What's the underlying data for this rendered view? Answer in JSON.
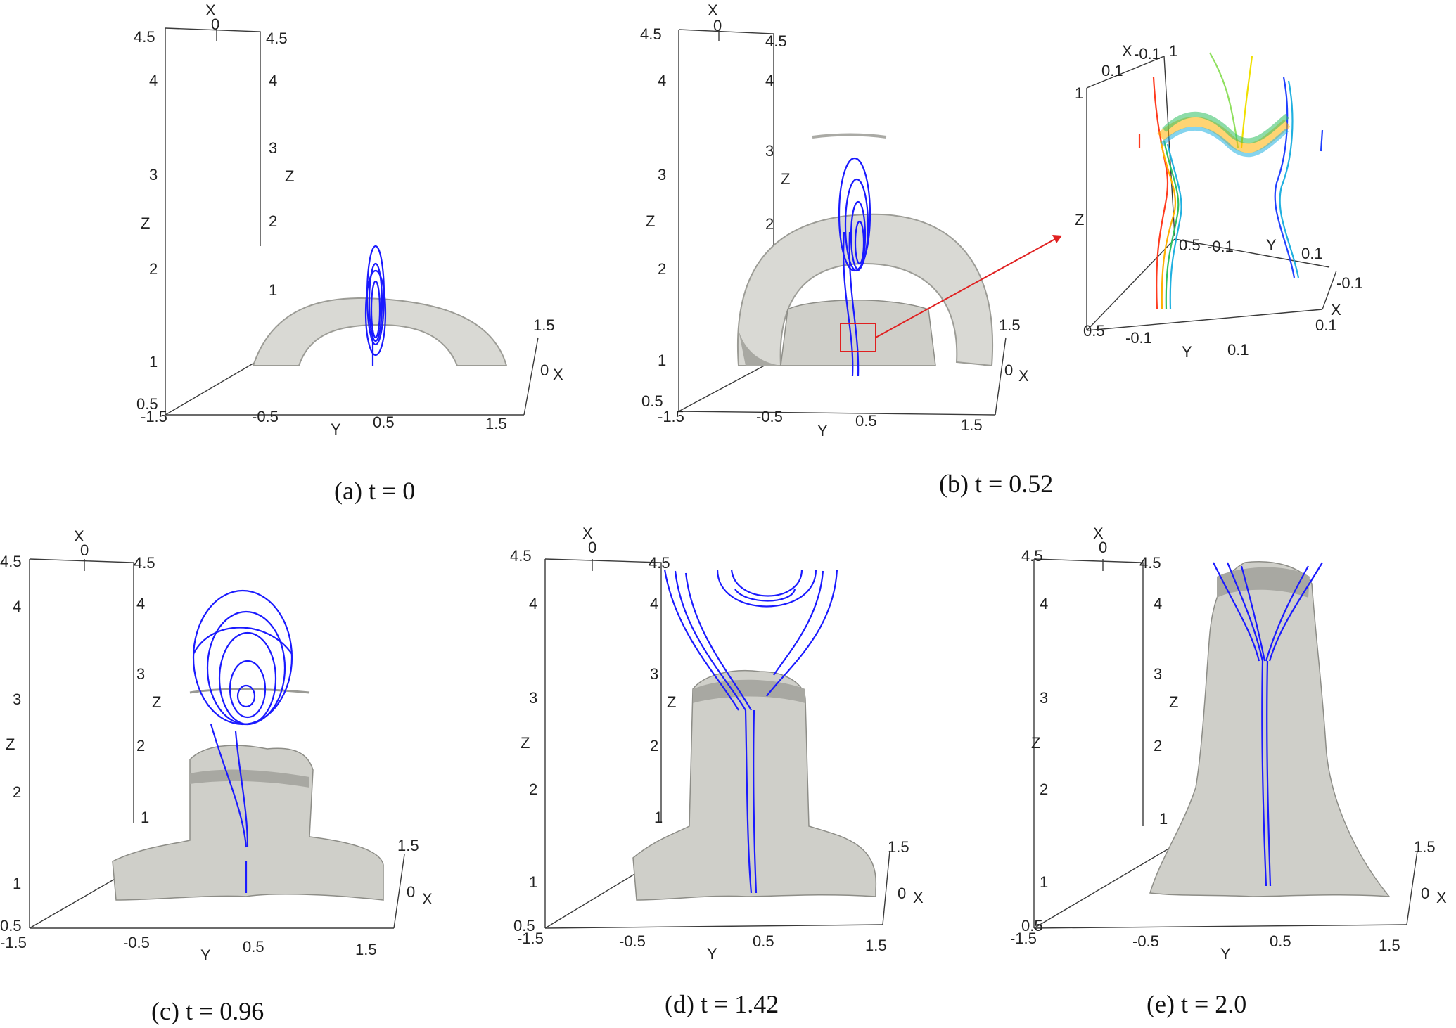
{
  "panels": [
    {
      "id": "a",
      "caption": "(a) t = 0",
      "ticks": {
        "x_top": "X",
        "x_top_zero": "0",
        "z_left": [
          "4.5",
          "4",
          "3",
          "2",
          "1",
          "0.5"
        ],
        "z_left_label": "Z",
        "z_right": [
          "4.5",
          "4",
          "3",
          "2",
          "1"
        ],
        "z_right_label": "Z",
        "y_bottom": [
          "-1.5",
          "-0.5",
          "0.5",
          "1.5"
        ],
        "y_label": "Y",
        "x_right": [
          "1.5",
          "0"
        ],
        "x_right_label": "X"
      }
    },
    {
      "id": "b",
      "caption": "(b) t = 0.52",
      "ticks": {
        "x_top": "X",
        "x_top_zero": "0",
        "z_left": [
          "4.5",
          "4",
          "3",
          "2",
          "1",
          "0.5"
        ],
        "z_left_label": "Z",
        "z_right": [
          "4.5",
          "4",
          "3",
          "2",
          "1"
        ],
        "z_right_label": "Z",
        "y_bottom": [
          "-1.5",
          "-0.5",
          "0.5",
          "1.5"
        ],
        "y_label": "Y",
        "x_right": [
          "1.5",
          "0"
        ],
        "x_right_label": "X"
      },
      "inset": {
        "ticks_top": [
          "X",
          "0.1",
          "-0.1",
          "1"
        ],
        "z_label": "Z",
        "tick_left": "1",
        "mid_ticks": [
          "0.5",
          "-0.1",
          "Y",
          "0.1"
        ],
        "right_ticks": [
          "-0.1",
          "X",
          "0.1"
        ],
        "bottom_ticks": [
          "0.5",
          "-0.1",
          "Y",
          "0.1"
        ]
      }
    },
    {
      "id": "c",
      "caption": "(c) t = 0.96",
      "ticks": {
        "x_top": "X",
        "x_top_zero": "0",
        "z_left": [
          "4.5",
          "4",
          "3",
          "2",
          "1",
          "0.5"
        ],
        "z_left_label": "Z",
        "z_right": [
          "4.5",
          "4",
          "3",
          "2",
          "1"
        ],
        "z_right_label": "Z",
        "y_bottom": [
          "-1.5",
          "-0.5",
          "0.5",
          "1.5"
        ],
        "y_label": "Y",
        "x_right": [
          "1.5",
          "0"
        ],
        "x_right_label": "X"
      }
    },
    {
      "id": "d",
      "caption": "(d) t = 1.42",
      "ticks": {
        "x_top": "X",
        "x_top_zero": "0",
        "z_left": [
          "4.5",
          "4",
          "3",
          "2",
          "1",
          "0.5"
        ],
        "z_left_label": "Z",
        "z_right": [
          "4.5",
          "4",
          "3",
          "2",
          "1"
        ],
        "z_right_label": "Z",
        "y_bottom": [
          "-1.5",
          "-0.5",
          "0.5",
          "1.5"
        ],
        "y_label": "Y",
        "x_right": [
          "1.5",
          "0"
        ],
        "x_right_label": "X"
      }
    },
    {
      "id": "e",
      "caption": "(e) t = 2.0",
      "ticks": {
        "x_top": "X",
        "x_top_zero": "0",
        "z_left": [
          "4.5",
          "4",
          "3",
          "2",
          "1",
          "0.5"
        ],
        "z_left_label": "Z",
        "z_right": [
          "4.5",
          "4",
          "3",
          "2",
          "1"
        ],
        "z_right_label": "Z",
        "y_bottom": [
          "-1.5",
          "-0.5",
          "0.5",
          "1.5"
        ],
        "y_label": "Y",
        "x_right": [
          "1.5",
          "0"
        ],
        "x_right_label": "X"
      }
    }
  ],
  "colors": {
    "field_lines": "#1a1aff",
    "surface": "#d9d9d4",
    "zoom_box": "#e02020",
    "inset_lines": [
      "#ff3b1f",
      "#ffb000",
      "#f0e000",
      "#30c060",
      "#20b0e0",
      "#2040ff",
      "#90e060"
    ]
  }
}
